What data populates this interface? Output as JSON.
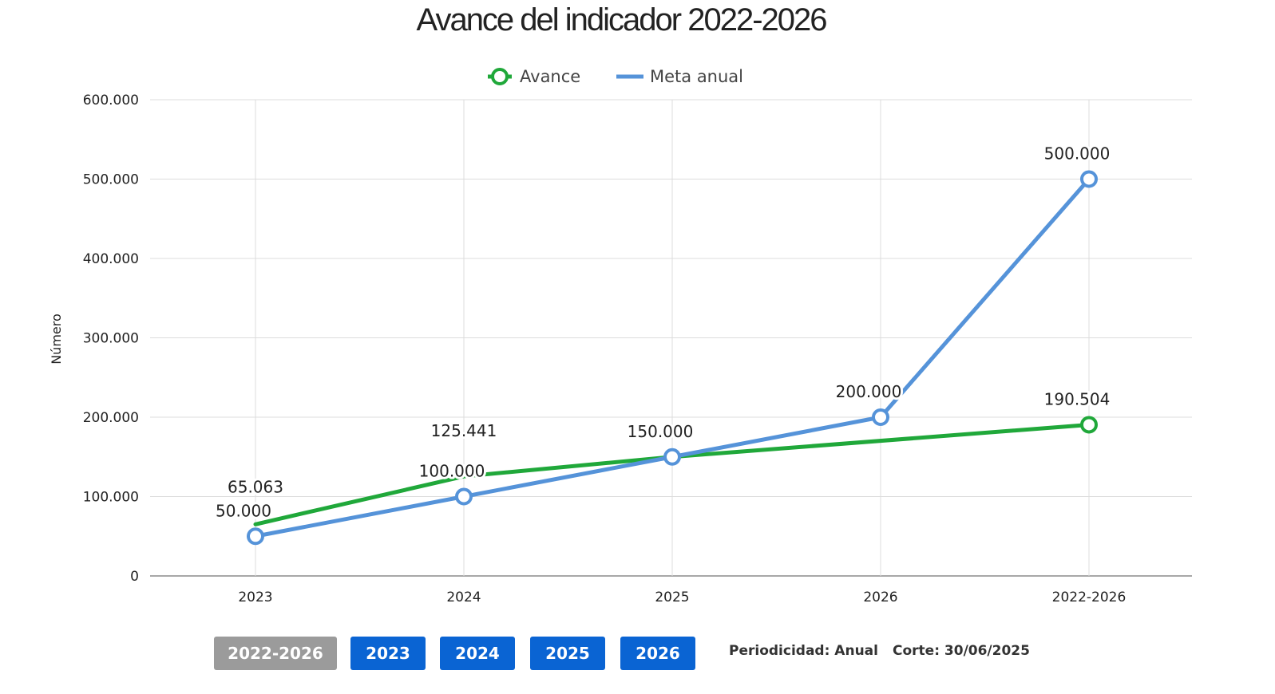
{
  "chart_data": {
    "type": "line",
    "title": "Avance del indicador 2022-2026",
    "xlabel": "",
    "ylabel": "Número",
    "categories": [
      "2023",
      "2024",
      "2025",
      "2026",
      "2022-2026"
    ],
    "y_ticks": [
      "0",
      "100.000",
      "200.000",
      "300.000",
      "400.000",
      "500.000",
      "600.000"
    ],
    "ylim": [
      0,
      600000
    ],
    "grid": true,
    "legend_position": "top-center",
    "series": [
      {
        "name": "Avance",
        "color": "#20a83a",
        "values": [
          65063,
          125441,
          150000,
          null,
          190504
        ],
        "labels": [
          "65.063",
          "125.441",
          "",
          "",
          "190.504"
        ]
      },
      {
        "name": "Meta anual",
        "color": "#5593d9",
        "values": [
          50000,
          100000,
          150000,
          200000,
          500000
        ],
        "labels": [
          "50.000",
          "100.000",
          "150.000",
          "200.000",
          "500.000"
        ]
      }
    ]
  },
  "controls": {
    "buttons": [
      {
        "label": "2022-2026",
        "active": true
      },
      {
        "label": "2023",
        "active": false
      },
      {
        "label": "2024",
        "active": false
      },
      {
        "label": "2025",
        "active": false
      },
      {
        "label": "2026",
        "active": false
      }
    ],
    "active_color": "#9b9b9b",
    "inactive_color": "#0a64d3"
  },
  "footer": {
    "periodicidad": "Periodicidad: Anual",
    "corte": "Corte: 30/06/2025"
  }
}
